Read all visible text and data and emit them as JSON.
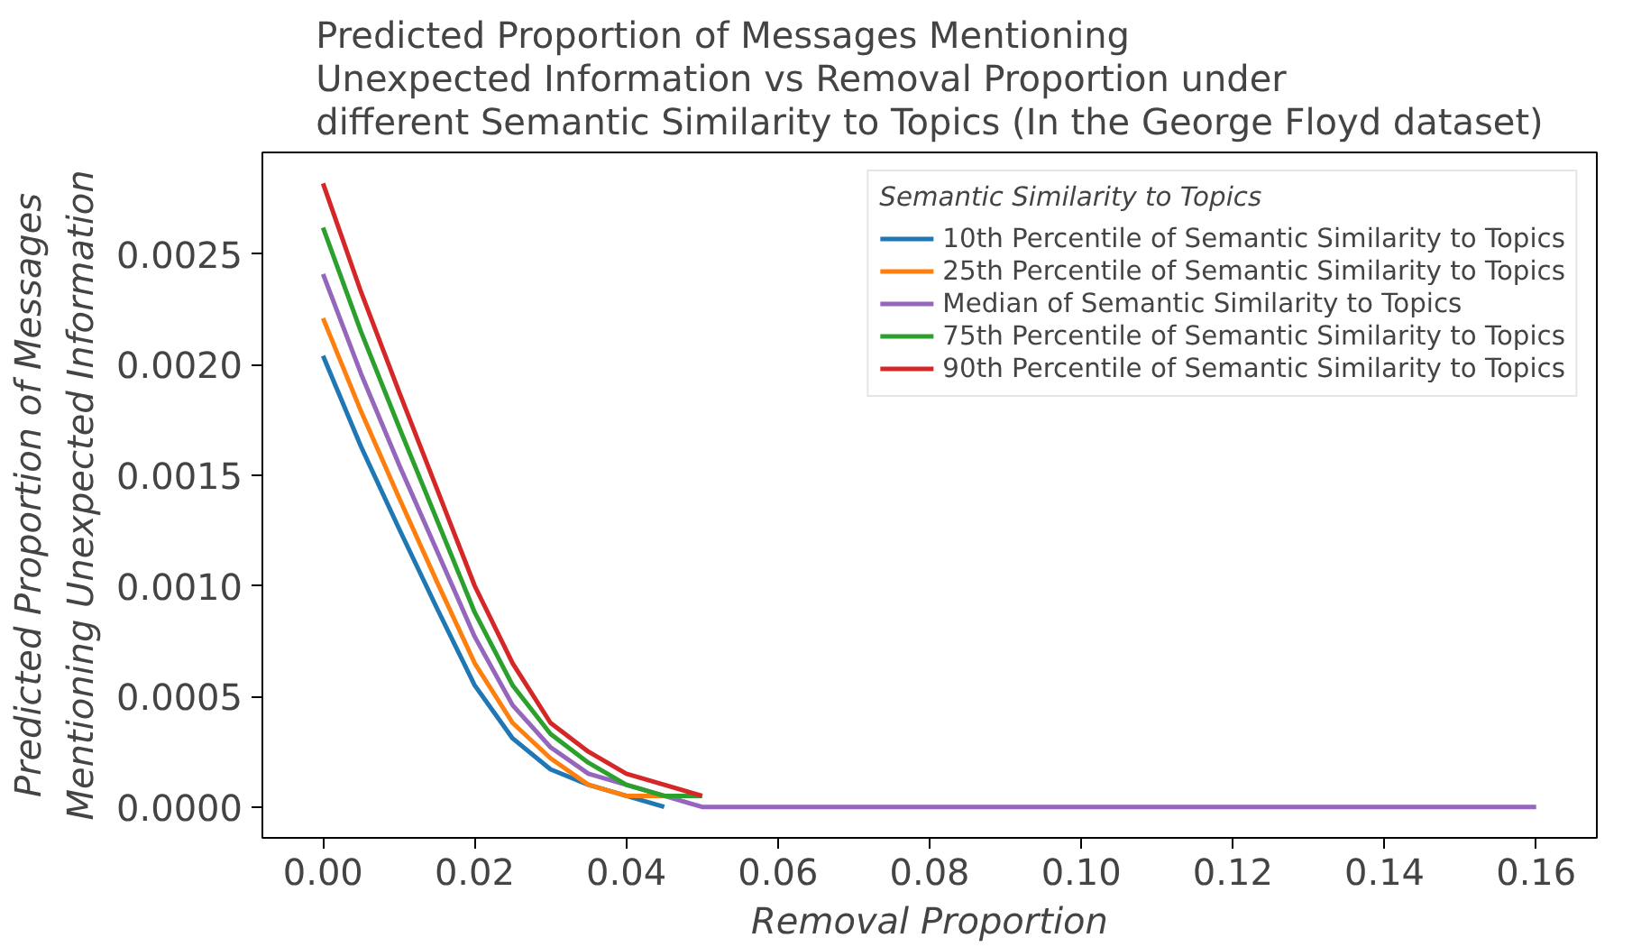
{
  "chart_data": {
    "type": "line",
    "title": "Predicted Proportion of Messages Mentioning\nUnexpected Information vs Removal Proportion under\ndifferent Semantic Similarity to Topics (In the George Floyd dataset)",
    "xlabel": "Removal Proportion",
    "ylabel": "Predicted Proportion of Messages\nMentioning Unexpected Information",
    "legend_title": "Semantic Similarity to Topics",
    "x": [
      0,
      0.005,
      0.01,
      0.015,
      0.02,
      0.025,
      0.03,
      0.035,
      0.04,
      0.045,
      0.05,
      0.06,
      0.07,
      0.08,
      0.1,
      0.12,
      0.14,
      0.16
    ],
    "series": [
      {
        "name": "10th Percentile of Semantic Similarity to Topics",
        "color": "#1f77b4",
        "values": [
          0.00204,
          0.00163,
          0.00126,
          0.0009,
          0.00055,
          0.00031,
          0.00017,
          0.0001,
          5e-05,
          0,
          null,
          null,
          null,
          null,
          null,
          null,
          null,
          null
        ]
      },
      {
        "name": "25th Percentile of Semantic Similarity to Topics",
        "color": "#ff7f0e",
        "values": [
          0.00221,
          0.00179,
          0.0014,
          0.00102,
          0.00065,
          0.00038,
          0.00022,
          0.0001,
          5e-05,
          5e-05,
          null,
          null,
          null,
          null,
          null,
          null,
          null,
          null
        ]
      },
      {
        "name": "Median of Semantic Similarity to Topics",
        "color": "#9467bd",
        "values": [
          0.00241,
          0.00196,
          0.00155,
          0.00116,
          0.00077,
          0.00046,
          0.00027,
          0.00015,
          0.0001,
          5e-05,
          0,
          0,
          0,
          0,
          0,
          0,
          0,
          0
        ]
      },
      {
        "name": "75th Percentile of Semantic Similarity to Topics",
        "color": "#2ca02c",
        "values": [
          0.00262,
          0.00215,
          0.00172,
          0.0013,
          0.00088,
          0.00055,
          0.00033,
          0.0002,
          0.0001,
          5e-05,
          5e-05,
          null,
          null,
          null,
          null,
          null,
          null,
          null
        ]
      },
      {
        "name": "90th Percentile of Semantic Similarity to Topics",
        "color": "#d62728",
        "values": [
          0.00282,
          0.00233,
          0.00188,
          0.00144,
          0.001,
          0.00065,
          0.00038,
          0.00025,
          0.00015,
          0.0001,
          5e-05,
          null,
          null,
          null,
          null,
          null,
          null,
          null
        ]
      }
    ],
    "xlim": [
      -0.008,
      0.168
    ],
    "ylim": [
      -0.00014,
      0.00296
    ],
    "xticks": [
      {
        "value": 0,
        "label": "0.00"
      },
      0.02,
      0.04,
      0.06,
      0.08,
      {
        "value": 0.1,
        "label": "0.10"
      },
      0.12,
      0.14,
      0.16
    ],
    "yticks": [
      {
        "value": 0,
        "label": "0.0000"
      },
      0.0005,
      {
        "value": 0.001,
        "label": "0.0010"
      },
      0.0015,
      {
        "value": 0.002,
        "label": "0.0020"
      },
      0.0025
    ],
    "grid": false,
    "legend": "top right",
    "line_style": "solid",
    "marker": "none"
  }
}
